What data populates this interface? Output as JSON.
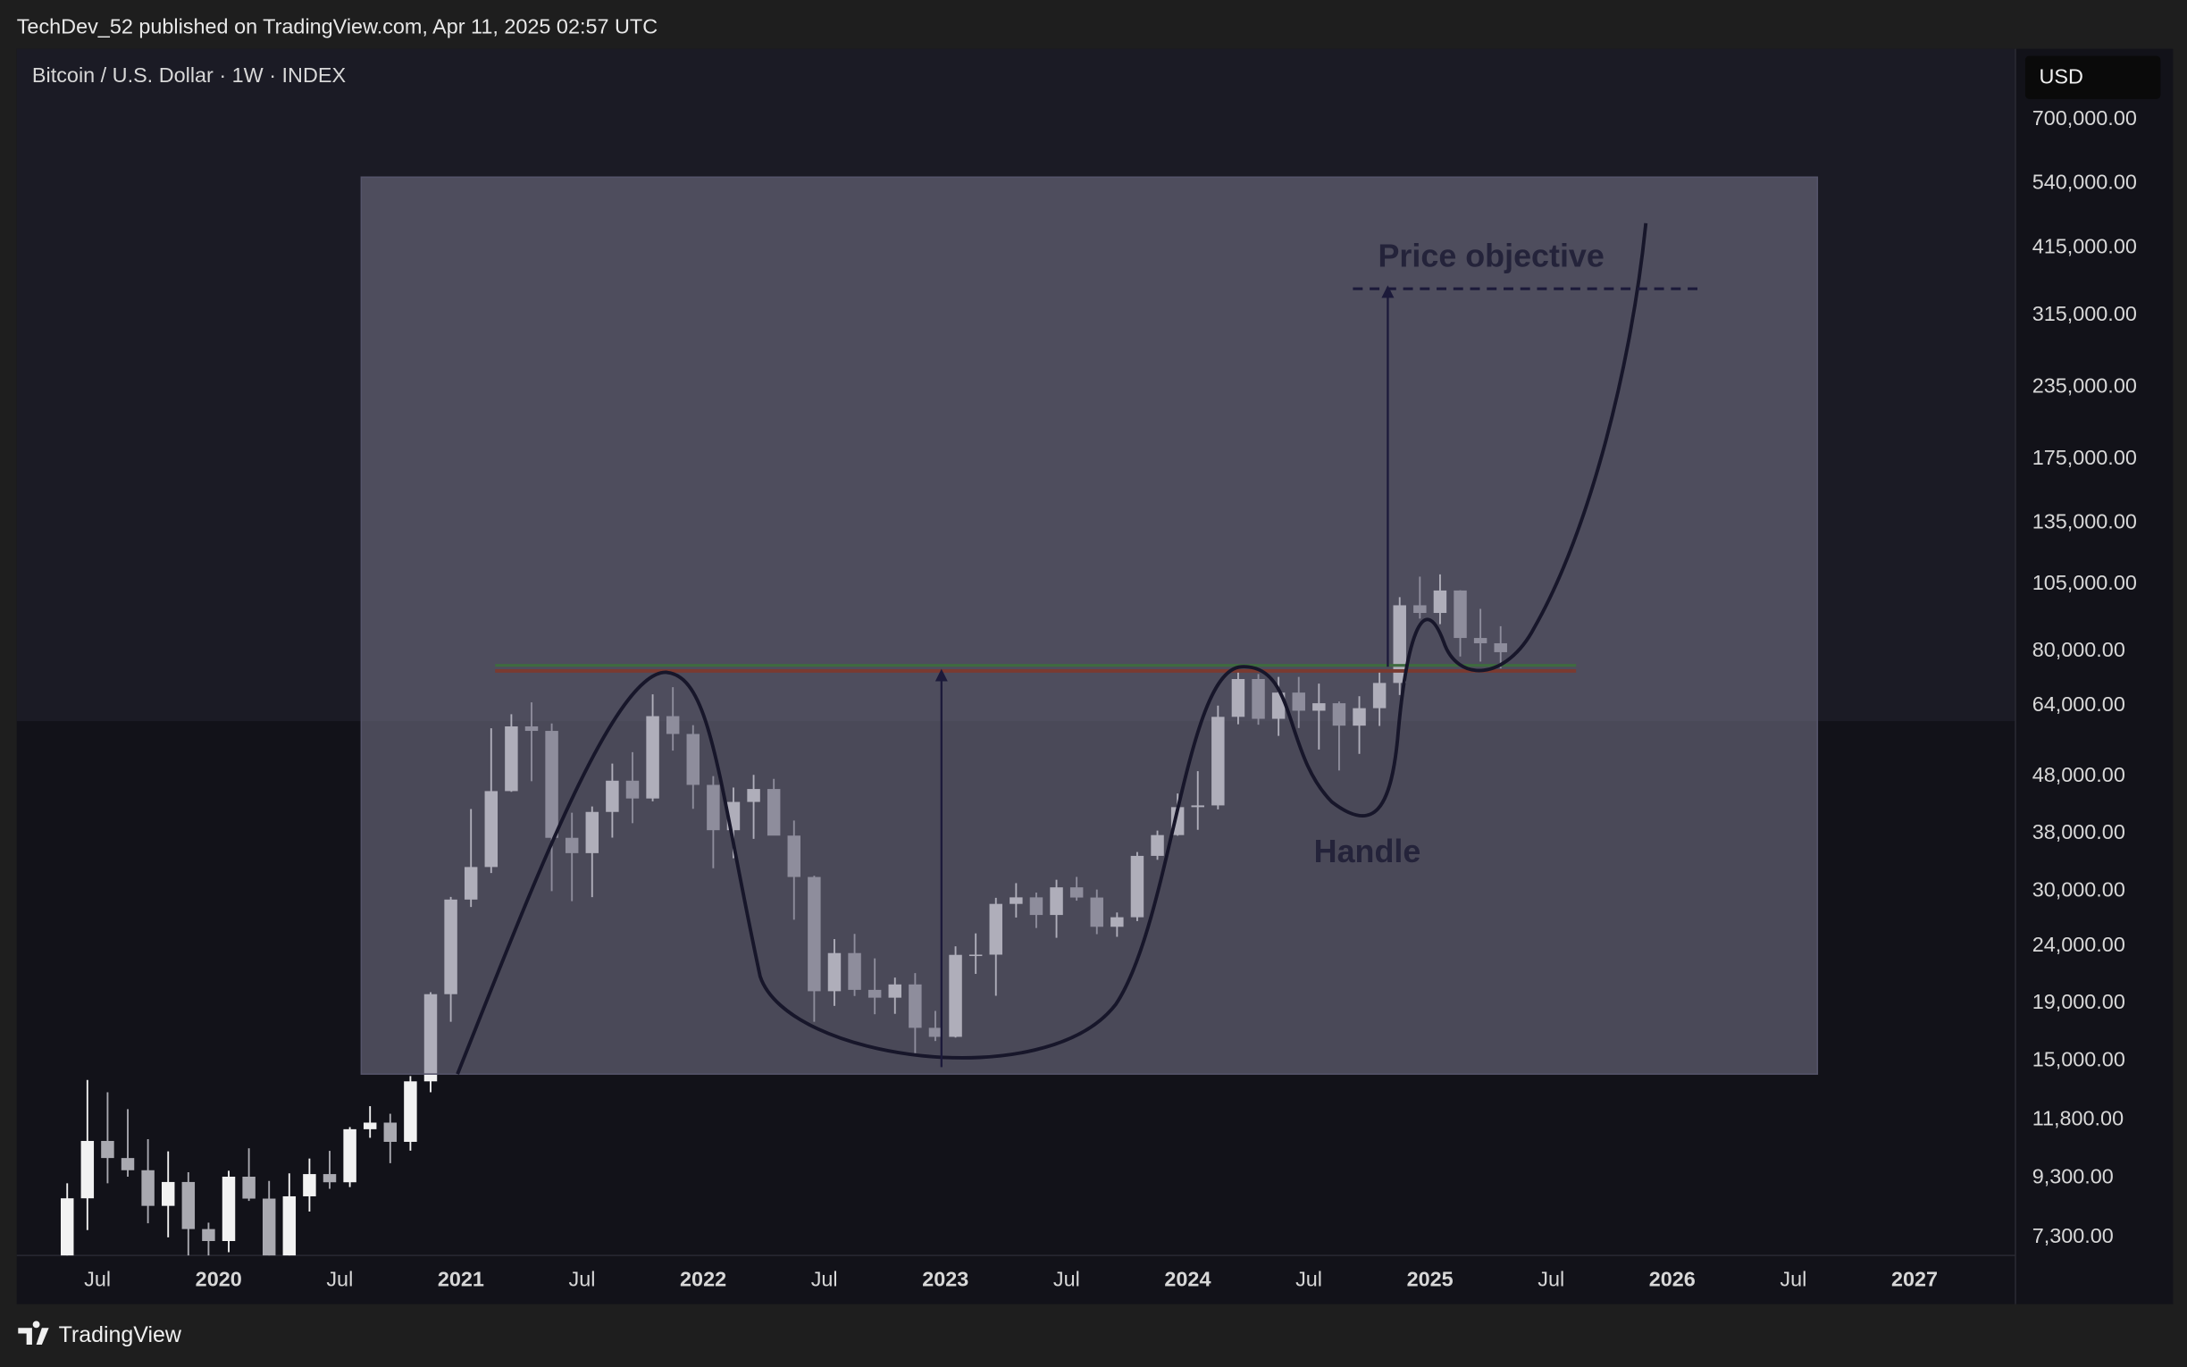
{
  "header": {
    "text": "TechDev_52 published on TradingView.com, Apr 11, 2025 02:57 UTC"
  },
  "chart_data": {
    "type": "candlestick",
    "title": "Bitcoin / U.S. Dollar · 1W · INDEX",
    "currency": "USD",
    "log_scale": true,
    "grid": false,
    "colors": {
      "up": "#f2f2f2",
      "down": "#a9a9b0"
    },
    "x": [
      "2019-05",
      "2019-06",
      "2019-07",
      "2019-08",
      "2019-09",
      "2019-10",
      "2019-11",
      "2019-12",
      "2020-01",
      "2020-02",
      "2020-03",
      "2020-04",
      "2020-05",
      "2020-06",
      "2020-07",
      "2020-08",
      "2020-09",
      "2020-10",
      "2020-11",
      "2020-12",
      "2021-01",
      "2021-02",
      "2021-03",
      "2021-04",
      "2021-05",
      "2021-06",
      "2021-07",
      "2021-08",
      "2021-09",
      "2021-10",
      "2021-11",
      "2021-12",
      "2022-01",
      "2022-02",
      "2022-03",
      "2022-04",
      "2022-05",
      "2022-06",
      "2022-07",
      "2022-08",
      "2022-09",
      "2022-10",
      "2022-11",
      "2022-12",
      "2023-01",
      "2023-02",
      "2023-03",
      "2023-04",
      "2023-05",
      "2023-06",
      "2023-07",
      "2023-08",
      "2023-09",
      "2023-10",
      "2023-11",
      "2023-12",
      "2024-01",
      "2024-02",
      "2024-03",
      "2024-04",
      "2024-05",
      "2024-06",
      "2024-07",
      "2024-08",
      "2024-09",
      "2024-10",
      "2024-11",
      "2024-12",
      "2025-01",
      "2025-02",
      "2025-03",
      "2025-04"
    ],
    "open": [
      5350,
      8560,
      10820,
      10090,
      9600,
      8300,
      9150,
      7550,
      7190,
      9350,
      8550,
      6420,
      8630,
      9450,
      9140,
      11350,
      11660,
      10780,
      13800,
      19700,
      28990,
      33110,
      45140,
      58790,
      57720,
      37300,
      35040,
      41460,
      47100,
      43800,
      61300,
      57000,
      46300,
      38480,
      43190,
      45530,
      37640,
      31790,
      19940,
      23300,
      20050,
      19420,
      20500,
      17170,
      16550,
      23130,
      23150,
      28480,
      29250,
      27220,
      30470,
      29230,
      25940,
      26970,
      34650,
      37720,
      42280,
      42580,
      61130,
      71330,
      60640,
      67490,
      62680,
      64620,
      58970,
      63330,
      70200,
      96400,
      93430,
      102400,
      84350,
      82550
    ],
    "high": [
      9100,
      13880,
      13200,
      12320,
      10900,
      10370,
      9520,
      7750,
      9580,
      10500,
      9190,
      9480,
      10070,
      10390,
      11450,
      12470,
      12090,
      14100,
      19860,
      29300,
      41950,
      58330,
      61780,
      64850,
      59500,
      41330,
      42400,
      50500,
      52920,
      67000,
      69000,
      59100,
      47990,
      45800,
      48240,
      47450,
      40020,
      31960,
      24670,
      25200,
      22800,
      21080,
      21470,
      18400,
      23950,
      25250,
      29200,
      31000,
      29830,
      31430,
      31800,
      30200,
      27500,
      35200,
      38420,
      44700,
      48970,
      64000,
      73800,
      72800,
      71950,
      71950,
      70000,
      65100,
      66500,
      73600,
      99650,
      108350,
      109360,
      102500,
      95000,
      88500
    ],
    "low": [
      5330,
      7520,
      9100,
      9350,
      7730,
      7300,
      6520,
      6430,
      6870,
      8470,
      3850,
      6150,
      8110,
      8900,
      8960,
      10960,
      9880,
      10400,
      13200,
      17600,
      28130,
      32300,
      45000,
      47000,
      30000,
      28800,
      29280,
      37330,
      39600,
      43300,
      53260,
      42000,
      32950,
      34320,
      37150,
      37700,
      26700,
      17600,
      18780,
      19550,
      18150,
      18180,
      15480,
      16270,
      16500,
      21400,
      19570,
      26940,
      25810,
      24800,
      28860,
      25170,
      24900,
      26550,
      34100,
      37620,
      38550,
      41900,
      59300,
      59190,
      56550,
      58400,
      53500,
      49100,
      52550,
      58900,
      66830,
      91300,
      89250,
      78200,
      76600,
      74500
    ],
    "close": [
      8560,
      10820,
      10090,
      9600,
      8300,
      9150,
      7550,
      7190,
      9350,
      8550,
      6420,
      8630,
      9450,
      9140,
      11350,
      11660,
      10780,
      13800,
      19700,
      28990,
      33110,
      45140,
      58790,
      57720,
      37300,
      35040,
      41460,
      47100,
      43800,
      61300,
      57000,
      46300,
      38480,
      43190,
      45530,
      37640,
      31790,
      19940,
      23300,
      20050,
      19420,
      20500,
      17170,
      16550,
      23130,
      23150,
      28480,
      29250,
      27220,
      30470,
      29230,
      25940,
      26970,
      34650,
      37720,
      42280,
      42580,
      61130,
      71330,
      60640,
      67490,
      62680,
      64620,
      58970,
      63330,
      70200,
      96400,
      93430,
      102400,
      84350,
      82550,
      79600
    ],
    "xlim": [
      "2019-03",
      "2027-06"
    ],
    "xticks": [
      {
        "value": "2019-07",
        "label": "Jul"
      },
      {
        "value": "2020-01",
        "label": "2020"
      },
      {
        "value": "2020-07",
        "label": "Jul"
      },
      {
        "value": "2021-01",
        "label": "2021"
      },
      {
        "value": "2021-07",
        "label": "Jul"
      },
      {
        "value": "2022-01",
        "label": "2022"
      },
      {
        "value": "2022-07",
        "label": "Jul"
      },
      {
        "value": "2023-01",
        "label": "2023"
      },
      {
        "value": "2023-07",
        "label": "Jul"
      },
      {
        "value": "2024-01",
        "label": "2024"
      },
      {
        "value": "2024-07",
        "label": "Jul"
      },
      {
        "value": "2025-01",
        "label": "2025"
      },
      {
        "value": "2025-07",
        "label": "Jul"
      },
      {
        "value": "2026-01",
        "label": "2026"
      },
      {
        "value": "2026-07",
        "label": "Jul"
      },
      {
        "value": "2027-01",
        "label": "2027"
      }
    ],
    "ylim": [
      6780,
      935000
    ],
    "yticks": [
      {
        "value": 700000,
        "label": "700,000.00"
      },
      {
        "value": 540000,
        "label": "540,000.00"
      },
      {
        "value": 415000,
        "label": "415,000.00"
      },
      {
        "value": 315000,
        "label": "315,000.00"
      },
      {
        "value": 235000,
        "label": "235,000.00"
      },
      {
        "value": 175000,
        "label": "175,000.00"
      },
      {
        "value": 135000,
        "label": "135,000.00"
      },
      {
        "value": 105000,
        "label": "105,000.00"
      },
      {
        "value": 80000,
        "label": "80,000.00"
      },
      {
        "value": 64000,
        "label": "64,000.00"
      },
      {
        "value": 48000,
        "label": "48,000.00"
      },
      {
        "value": 38000,
        "label": "38,000.00"
      },
      {
        "value": 30000,
        "label": "30,000.00"
      },
      {
        "value": 24000,
        "label": "24,000.00"
      },
      {
        "value": 19000,
        "label": "19,000.00"
      },
      {
        "value": 15000,
        "label": "15,000.00"
      },
      {
        "value": 11800,
        "label": "11,800.00"
      },
      {
        "value": 9300,
        "label": "9,300.00"
      },
      {
        "value": 7300,
        "label": "7,300.00"
      }
    ],
    "annotations": [
      "Price objective",
      "Handle"
    ]
  },
  "footer": {
    "brand": "TradingView"
  }
}
